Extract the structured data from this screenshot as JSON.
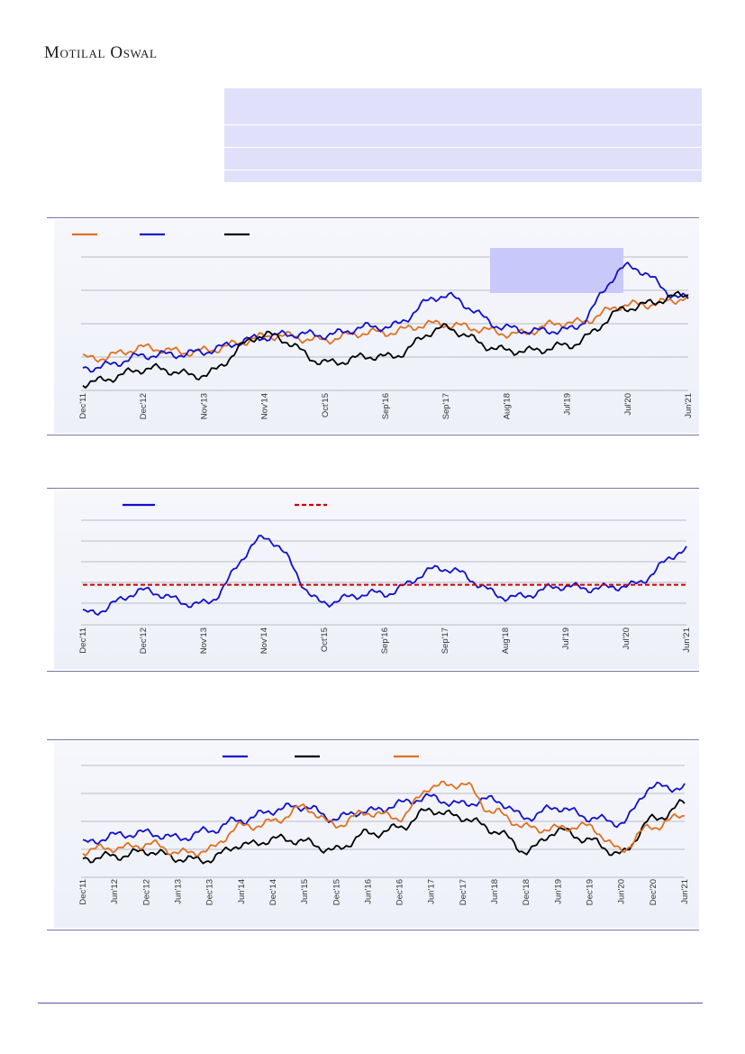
{
  "brand": "Motilal Oswal",
  "colors": {
    "orange": "#e07020",
    "blue": "#1010cc",
    "black": "#000000",
    "red": "#d00000",
    "highlight": "#c9c8fa"
  },
  "chart_data": [
    {
      "type": "line",
      "x": [
        "Dec'11",
        "Dec'12",
        "Nov'13",
        "Nov'14",
        "Oct'15",
        "Sep'16",
        "Sep'17",
        "Aug'18",
        "Jul'19",
        "Jul'20",
        "Jun'21"
      ],
      "series": [
        {
          "color": "orange",
          "values": [
            2.0,
            2.4,
            2.3,
            2.9,
            2.8,
            3.1,
            3.4,
            3.0,
            3.4,
            4.1,
            4.4
          ]
        },
        {
          "color": "blue",
          "values": [
            1.6,
            2.1,
            2.3,
            2.9,
            3.0,
            3.3,
            4.5,
            3.2,
            3.1,
            5.6,
            4.4
          ]
        },
        {
          "color": "black",
          "values": [
            1.0,
            1.6,
            1.4,
            3.0,
            1.9,
            2.1,
            3.2,
            2.3,
            2.5,
            4.0,
            4.6
          ]
        }
      ],
      "grid": true
    },
    {
      "type": "line",
      "x": [
        "Dec'11",
        "Dec'12",
        "Nov'13",
        "Nov'14",
        "Oct'15",
        "Sep'16",
        "Sep'17",
        "Aug'18",
        "Jul'19",
        "Jul'20",
        "Jun'21"
      ],
      "series": [
        {
          "color": "blue",
          "values": [
            0.8,
            1.7,
            1.2,
            3.9,
            1.3,
            1.7,
            2.7,
            1.5,
            1.9,
            1.9,
            3.4
          ]
        },
        {
          "color": "red",
          "style": "dashed",
          "values": [
            2.0,
            2.0,
            2.0,
            2.0,
            2.0,
            2.0,
            2.0,
            2.0,
            2.0,
            2.0,
            2.0
          ]
        }
      ],
      "grid": true
    },
    {
      "type": "line",
      "x": [
        "Dec'11",
        "Jun'12",
        "Dec'12",
        "Jun'13",
        "Dec'13",
        "Jun'14",
        "Dec'14",
        "Jun'15",
        "Dec'15",
        "Jun'16",
        "Dec'16",
        "Jun'17",
        "Dec'17",
        "Jun'18",
        "Dec'18",
        "Jun'19",
        "Dec'19",
        "Jun'20",
        "Dec'20",
        "Jun'21"
      ],
      "series": [
        {
          "color": "blue",
          "values": [
            1.2,
            1.6,
            1.6,
            1.5,
            1.7,
            2.2,
            2.5,
            2.7,
            2.2,
            2.5,
            2.8,
            3.0,
            2.8,
            2.9,
            2.3,
            2.6,
            2.3,
            2.0,
            3.5,
            3.4
          ]
        },
        {
          "color": "black",
          "values": [
            0.6,
            0.8,
            0.9,
            0.7,
            0.6,
            1.2,
            1.4,
            1.3,
            1.0,
            1.6,
            1.9,
            2.5,
            2.3,
            1.7,
            1.0,
            1.7,
            1.4,
            0.8,
            2.2,
            2.8
          ]
        },
        {
          "color": "orange",
          "values": [
            0.9,
            1.1,
            1.2,
            0.9,
            1.0,
            1.9,
            2.1,
            2.6,
            2.0,
            2.4,
            2.3,
            3.4,
            3.6,
            2.4,
            1.9,
            1.8,
            1.9,
            1.0,
            1.9,
            2.4
          ]
        }
      ],
      "grid": true
    }
  ]
}
